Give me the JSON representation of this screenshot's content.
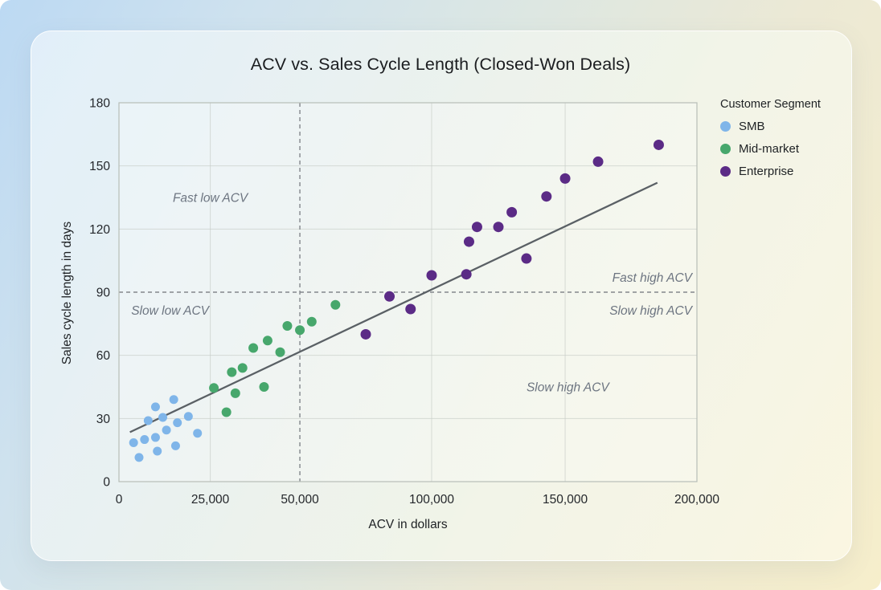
{
  "chart_data": {
    "type": "scatter",
    "title": "ACV vs. Sales Cycle Length (Closed-Won Deals)",
    "xlabel": "ACV in dollars",
    "ylabel": "Sales cycle length in days",
    "legend_title": "Customer Segment",
    "legend_position": "top-right-outside",
    "grid": true,
    "ylim": [
      0,
      180
    ],
    "y_ticks": [
      0,
      30,
      60,
      90,
      120,
      150,
      180
    ],
    "y_tick_labels": [
      "0",
      "30",
      "60",
      "90",
      "120",
      "150",
      "180"
    ],
    "x_scale": {
      "type": "piecewise-linear",
      "ticks": [
        0,
        25000,
        50000,
        100000,
        150000,
        200000
      ],
      "fractions": [
        0,
        0.158,
        0.313,
        0.541,
        0.772,
        1
      ]
    },
    "x_tick_labels": [
      "0",
      "25,000",
      "50,000",
      "100,000",
      "150,000",
      "200,000"
    ],
    "series": [
      {
        "name": "SMB",
        "color": "#7fb5e9",
        "radius": 5.5,
        "points": [
          [
            15000,
            39
          ],
          [
            10000,
            35.5
          ],
          [
            12000,
            30.5
          ],
          [
            19000,
            31
          ],
          [
            8000,
            29
          ],
          [
            16000,
            28
          ],
          [
            13000,
            24.5
          ],
          [
            21500,
            23
          ],
          [
            10000,
            21
          ],
          [
            7000,
            20
          ],
          [
            4000,
            18.5
          ],
          [
            15500,
            17
          ],
          [
            10500,
            14.5
          ],
          [
            5500,
            11.5
          ]
        ]
      },
      {
        "name": "Mid-market",
        "color": "#47a76c",
        "radius": 6,
        "points": [
          [
            26000,
            44.5
          ],
          [
            29500,
            33
          ],
          [
            31000,
            52
          ],
          [
            32000,
            42
          ],
          [
            34000,
            54
          ],
          [
            37000,
            63.5
          ],
          [
            40000,
            45
          ],
          [
            41000,
            67
          ],
          [
            44500,
            61.5
          ],
          [
            46500,
            74
          ],
          [
            50000,
            72
          ],
          [
            54500,
            76
          ],
          [
            63500,
            84
          ]
        ]
      },
      {
        "name": "Enterprise",
        "color": "#5b2b86",
        "radius": 6.5,
        "points": [
          [
            75000,
            70
          ],
          [
            84000,
            88
          ],
          [
            92000,
            82
          ],
          [
            100000,
            98
          ],
          [
            113000,
            98.5
          ],
          [
            114000,
            114
          ],
          [
            117000,
            121
          ],
          [
            125000,
            121
          ],
          [
            130000,
            128
          ],
          [
            135500,
            106
          ],
          [
            143000,
            135.5
          ],
          [
            150000,
            144
          ],
          [
            162500,
            152
          ],
          [
            185500,
            160
          ]
        ]
      }
    ],
    "trendline": {
      "x1": 3000,
      "y1": 23.5,
      "x2": 185000,
      "y2": 142
    },
    "reference_lines": {
      "vertical_x": 50000,
      "horizontal_y": 90,
      "style": "dashed"
    },
    "annotations": [
      {
        "text": "Fast low ACV",
        "x": 25000,
        "y": 135,
        "anchor": "middle"
      },
      {
        "text": "Slow low ACV",
        "x": 14000,
        "y": 81.5,
        "anchor": "middle"
      },
      {
        "text": "Fast high ACV",
        "x": 198000,
        "y": 97,
        "anchor": "end"
      },
      {
        "text": "Slow high ACV",
        "x": 198000,
        "y": 81.5,
        "anchor": "end"
      },
      {
        "text": "Slow high ACV",
        "x": 151000,
        "y": 45,
        "anchor": "middle"
      }
    ],
    "colors": {
      "trendline": "#5a6065",
      "reference_line": "#83878c",
      "grid": "#c6ccc6",
      "plot_border": "#b7bdb7",
      "annotation_text": "#6d7581",
      "tick_text": "#24272b"
    }
  }
}
